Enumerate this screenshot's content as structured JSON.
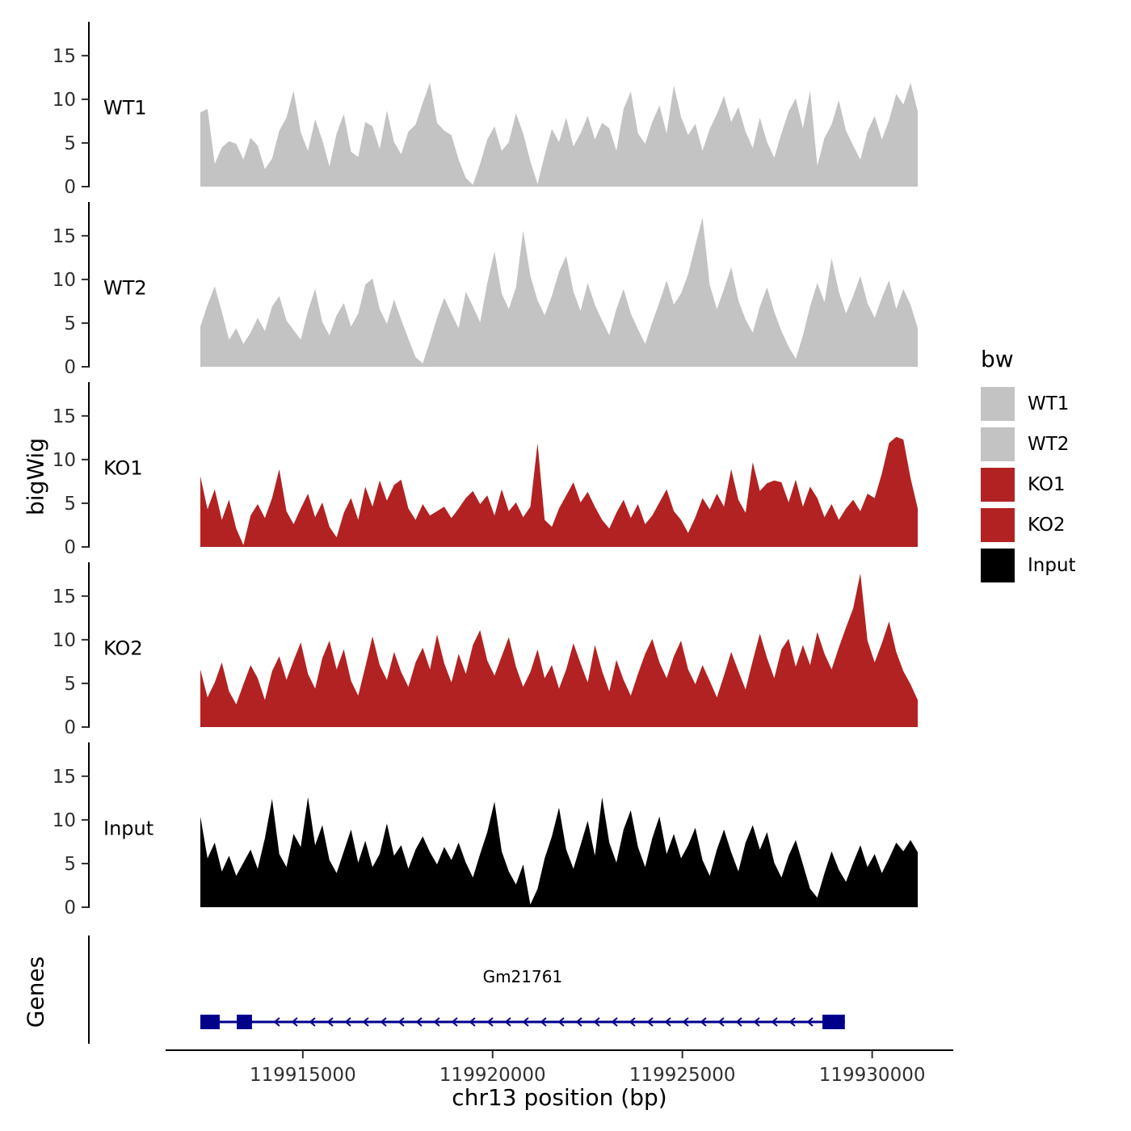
{
  "chart_data": {
    "type": "area",
    "title": "",
    "xlabel": "chr13 position (bp)",
    "ylabel": "bigWig",
    "x_range": [
      119912300,
      119931200
    ],
    "x_ticks": [
      119915000,
      119920000,
      119925000,
      119930000
    ],
    "x_tick_labels": [
      "119915000",
      "119920000",
      "119925000",
      "119930000"
    ],
    "y_ticks": [
      0,
      5,
      10,
      15
    ],
    "ylim": [
      0,
      18.5
    ],
    "grid": false,
    "legend": {
      "title": "bw",
      "position": "right",
      "entries": [
        {
          "label": "WT1",
          "color": "#C3C3C3"
        },
        {
          "label": "WT2",
          "color": "#C3C3C3"
        },
        {
          "label": "KO1",
          "color": "#B22222"
        },
        {
          "label": "KO2",
          "color": "#B22222"
        },
        {
          "label": "Input",
          "color": "#000000"
        }
      ]
    },
    "tracks": [
      {
        "name": "WT1",
        "color": "#C3C3C3",
        "values": [
          8.5,
          8.9,
          2.6,
          4.5,
          5.2,
          4.9,
          3.1,
          5.6,
          4.7,
          2.0,
          3.2,
          6.4,
          7.9,
          11.0,
          6.2,
          4.1,
          7.7,
          5.3,
          2.3,
          6.1,
          8.3,
          4.0,
          3.4,
          7.4,
          6.9,
          4.3,
          8.7,
          5.1,
          3.7,
          6.3,
          7.1,
          9.6,
          11.9,
          7.3,
          6.4,
          5.9,
          3.1,
          1.0,
          0.2,
          2.6,
          5.4,
          6.9,
          4.1,
          5.1,
          8.4,
          6.1,
          2.9,
          0.3,
          3.6,
          6.6,
          5.1,
          7.9,
          4.6,
          6.1,
          8.1,
          5.4,
          7.3,
          6.7,
          4.1,
          8.9,
          10.9,
          6.1,
          4.9,
          7.4,
          9.3,
          6.1,
          11.6,
          8.0,
          5.9,
          7.2,
          4.1,
          6.6,
          8.3,
          10.4,
          7.4,
          9.1,
          6.3,
          4.4,
          7.9,
          5.1,
          3.3,
          6.1,
          8.6,
          10.1,
          6.7,
          11.0,
          2.4,
          5.6,
          7.1,
          9.9,
          6.4,
          4.7,
          3.1,
          6.3,
          8.1,
          5.4,
          7.6,
          10.6,
          9.4,
          11.9,
          8.6
        ]
      },
      {
        "name": "WT2",
        "color": "#C3C3C3",
        "values": [
          4.6,
          7.1,
          9.2,
          6.3,
          3.1,
          4.4,
          2.6,
          3.9,
          5.6,
          4.1,
          6.9,
          8.1,
          5.3,
          4.2,
          3.1,
          6.4,
          8.9,
          5.1,
          3.6,
          5.9,
          7.3,
          4.6,
          6.1,
          9.4,
          10.1,
          6.6,
          4.9,
          7.7,
          5.4,
          3.2,
          1.1,
          0.4,
          2.9,
          5.6,
          7.9,
          6.1,
          4.4,
          8.6,
          6.9,
          5.1,
          9.6,
          13.2,
          8.4,
          6.6,
          9.1,
          15.6,
          10.4,
          7.6,
          5.9,
          8.1,
          10.9,
          12.7,
          8.6,
          6.4,
          9.6,
          7.1,
          5.3,
          3.6,
          6.6,
          8.9,
          6.1,
          4.3,
          2.6,
          5.1,
          7.4,
          9.9,
          7.1,
          8.4,
          10.6,
          13.9,
          17.1,
          9.4,
          6.6,
          8.9,
          11.4,
          7.6,
          5.4,
          3.9,
          6.9,
          9.1,
          6.3,
          4.1,
          2.3,
          0.9,
          3.6,
          6.9,
          9.6,
          7.4,
          12.4,
          8.6,
          6.1,
          8.1,
          10.4,
          7.3,
          5.6,
          7.9,
          9.9,
          6.6,
          8.9,
          7.1,
          4.4
        ]
      },
      {
        "name": "KO1",
        "color": "#B22222",
        "values": [
          8.1,
          4.3,
          6.6,
          3.1,
          5.4,
          2.1,
          0.2,
          3.6,
          4.9,
          3.3,
          5.6,
          8.9,
          4.1,
          2.6,
          4.4,
          6.1,
          3.4,
          5.1,
          2.3,
          1.1,
          3.9,
          5.6,
          3.1,
          6.9,
          4.6,
          7.6,
          5.3,
          7.1,
          7.7,
          4.4,
          3.1,
          4.9,
          3.6,
          4.1,
          4.6,
          3.3,
          4.4,
          5.6,
          6.4,
          4.9,
          5.9,
          3.6,
          6.6,
          4.1,
          5.1,
          3.4,
          4.6,
          11.9,
          3.1,
          2.3,
          4.4,
          5.9,
          7.4,
          5.1,
          6.3,
          4.6,
          3.1,
          2.1,
          3.9,
          5.4,
          3.3,
          4.9,
          2.6,
          3.6,
          5.1,
          6.6,
          4.1,
          3.1,
          1.6,
          3.4,
          5.6,
          4.3,
          6.1,
          4.6,
          8.9,
          5.4,
          3.9,
          9.7,
          6.4,
          7.3,
          7.6,
          7.4,
          5.1,
          7.7,
          4.6,
          6.9,
          5.6,
          3.4,
          4.9,
          3.1,
          4.4,
          5.4,
          4.1,
          6.1,
          5.6,
          8.4,
          11.9,
          12.6,
          12.3,
          7.9,
          4.4
        ]
      },
      {
        "name": "KO2",
        "color": "#B22222",
        "values": [
          6.6,
          3.4,
          5.1,
          7.4,
          4.1,
          2.6,
          4.9,
          7.1,
          5.6,
          3.1,
          6.4,
          8.1,
          5.4,
          7.6,
          9.7,
          6.1,
          4.4,
          7.9,
          9.9,
          6.6,
          8.9,
          5.3,
          3.6,
          6.9,
          10.4,
          7.1,
          5.4,
          8.6,
          6.3,
          4.6,
          7.4,
          9.1,
          6.6,
          10.6,
          7.3,
          5.1,
          8.4,
          6.1,
          9.4,
          11.1,
          7.6,
          5.9,
          8.1,
          10.3,
          6.9,
          4.6,
          6.3,
          8.9,
          5.6,
          7.1,
          4.4,
          6.6,
          9.6,
          7.3,
          5.1,
          9.4,
          6.4,
          4.1,
          7.7,
          5.4,
          3.6,
          6.1,
          8.4,
          10.1,
          7.4,
          5.6,
          8.1,
          9.9,
          6.6,
          4.9,
          7.1,
          5.3,
          3.4,
          5.9,
          8.6,
          6.4,
          4.3,
          7.6,
          10.7,
          7.9,
          5.6,
          8.9,
          10.1,
          6.9,
          9.4,
          7.1,
          10.9,
          8.4,
          6.6,
          9.1,
          11.4,
          13.6,
          17.6,
          9.9,
          7.4,
          9.6,
          12.1,
          8.6,
          6.4,
          4.9,
          3.1
        ]
      },
      {
        "name": "Input",
        "color": "#000000",
        "values": [
          10.4,
          5.6,
          7.4,
          4.1,
          5.9,
          3.6,
          5.1,
          6.6,
          4.4,
          7.9,
          12.4,
          6.1,
          4.6,
          8.4,
          6.9,
          12.6,
          7.1,
          9.4,
          5.4,
          3.9,
          6.4,
          8.9,
          5.1,
          7.6,
          4.6,
          6.1,
          9.6,
          5.9,
          7.1,
          4.4,
          6.6,
          8.1,
          6.3,
          4.9,
          6.9,
          5.4,
          7.4,
          5.1,
          3.4,
          6.1,
          8.6,
          12.1,
          6.4,
          4.1,
          2.6,
          4.9,
          0.3,
          2.1,
          5.6,
          8.1,
          11.4,
          6.6,
          4.4,
          7.1,
          9.9,
          5.9,
          12.6,
          7.4,
          5.1,
          8.9,
          11.1,
          6.9,
          4.6,
          7.9,
          10.4,
          6.1,
          8.4,
          5.6,
          7.1,
          9.1,
          5.4,
          3.6,
          6.6,
          8.9,
          6.3,
          4.1,
          7.4,
          9.4,
          6.6,
          8.6,
          5.1,
          3.4,
          5.9,
          7.7,
          4.9,
          2.1,
          1.1,
          3.9,
          6.4,
          4.3,
          2.9,
          5.1,
          7.1,
          4.6,
          6.1,
          3.9,
          5.6,
          7.4,
          6.4,
          7.7,
          6.3
        ]
      }
    ],
    "genes": {
      "label": "Genes",
      "gene": {
        "name": "Gm21761",
        "strand": "-",
        "start": 119912300,
        "end": 119929280,
        "color": "#00008B",
        "exons": [
          [
            119912300,
            119912810
          ],
          [
            119913260,
            119913660
          ],
          [
            119928690,
            119929280
          ]
        ]
      }
    }
  }
}
